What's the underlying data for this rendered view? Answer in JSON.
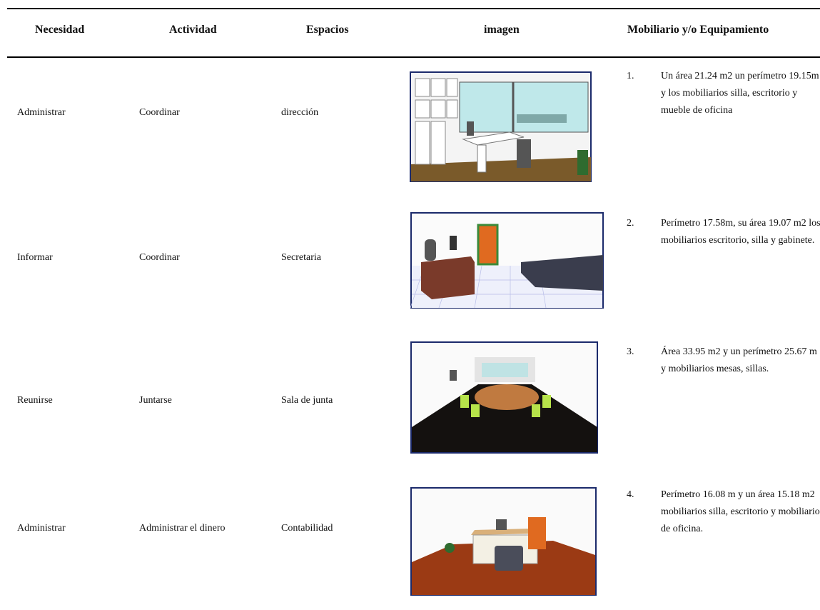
{
  "table": {
    "header": [
      "Necesidad",
      "Actividad",
      "Espacios",
      "imagen",
      "Mobiliario y/o Equipamiento"
    ],
    "rows": [
      {
        "necesidad": "Administrar",
        "actividad": "Coordinar",
        "espacios": "dirección",
        "item_number": "1.",
        "mobiliario": "Un área 21.24 m2 un perímetro 19.15m y los mobiliarios silla, escritorio y mueble de oficina"
      },
      {
        "necesidad": "Informar",
        "actividad": "Coordinar",
        "espacios": "Secretaria",
        "item_number": "2.",
        "mobiliario": "Perímetro 17.58m, su área 19.07 m2 los mobiliarios escritorio, silla y gabinete."
      },
      {
        "necesidad": "Reunirse",
        "actividad": "Juntarse",
        "espacios": "Sala de junta",
        "item_number": "3.",
        "mobiliario": "Área 33.95 m2 y un perímetro 25.67 m y mobiliarios mesas, sillas."
      },
      {
        "necesidad": "Administrar",
        "actividad": "Administrar el dinero",
        "espacios": "Contabilidad",
        "item_number": "4.",
        "mobiliario": "Perímetro 16.08 m y un área 15.18 m2 mobiliarios silla, escritorio y mobiliario de oficina."
      }
    ]
  }
}
